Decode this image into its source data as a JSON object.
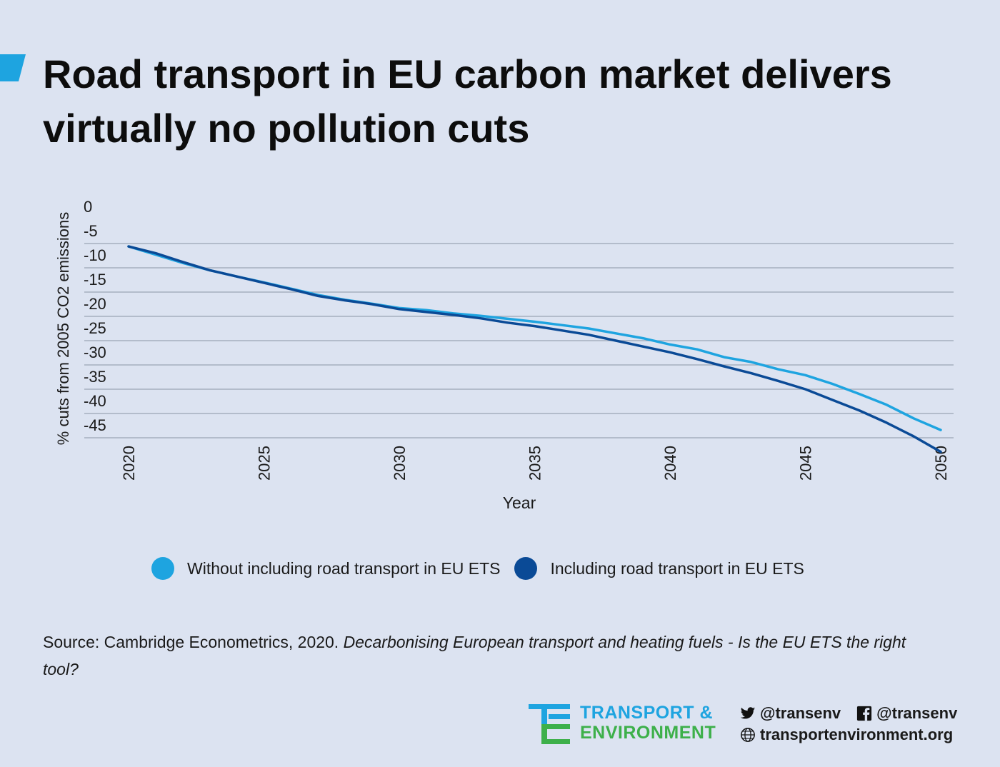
{
  "header": {
    "title": "Road transport in EU carbon market delivers virtually no pollution cuts"
  },
  "colors": {
    "background": "#dce3f1",
    "series_light": "#1ea4e0",
    "series_dark": "#0a4a96",
    "grid": "#9aa4b5",
    "te_blue": "#1ea4e0",
    "te_green": "#3db04a"
  },
  "chart_data": {
    "type": "line",
    "title": "",
    "xlabel": "Year",
    "ylabel": "% cuts from 2005 CO2 emissions",
    "xlim": [
      2020,
      2050
    ],
    "ylim": [
      -45,
      0
    ],
    "x_ticks": [
      "2020",
      "2025",
      "2030",
      "2035",
      "2040",
      "2045",
      "2050"
    ],
    "y_ticks": [
      "0",
      "-5",
      "-10",
      "-15",
      "-20",
      "-25",
      "-30",
      "-35",
      "-40",
      "-45"
    ],
    "grid": true,
    "legend_position": "bottom",
    "x": [
      2020,
      2021,
      2022,
      2023,
      2024,
      2025,
      2026,
      2027,
      2028,
      2029,
      2030,
      2031,
      2032,
      2033,
      2034,
      2035,
      2036,
      2037,
      2038,
      2039,
      2040,
      2041,
      2042,
      2043,
      2044,
      2045,
      2046,
      2047,
      2048,
      2049,
      2050
    ],
    "series": [
      {
        "name": "Without including road transport in EU ETS",
        "color": "#1ea4e0",
        "values": [
          -5.6,
          -7.3,
          -9.0,
          -10.5,
          -11.8,
          -13.0,
          -14.3,
          -15.6,
          -16.6,
          -17.4,
          -18.3,
          -18.7,
          -19.4,
          -19.9,
          -20.5,
          -21.1,
          -21.8,
          -22.5,
          -23.5,
          -24.5,
          -25.8,
          -26.8,
          -28.4,
          -29.4,
          -30.9,
          -32.1,
          -33.9,
          -36.0,
          -38.2,
          -41.0,
          -43.4
        ],
        "width": 3.5
      },
      {
        "name": "Including road transport in EU ETS",
        "color": "#0a4a96",
        "values": [
          -5.6,
          -7.0,
          -8.8,
          -10.5,
          -11.8,
          -13.1,
          -14.4,
          -15.8,
          -16.7,
          -17.5,
          -18.5,
          -19.1,
          -19.7,
          -20.4,
          -21.3,
          -22.0,
          -22.9,
          -23.8,
          -25.0,
          -26.2,
          -27.4,
          -28.8,
          -30.3,
          -31.7,
          -33.3,
          -35.0,
          -37.2,
          -39.4,
          -41.9,
          -44.7,
          -47.9
        ],
        "width": 3.5
      }
    ]
  },
  "legend": [
    {
      "label": "Without including road transport in EU ETS",
      "color": "#1ea4e0"
    },
    {
      "label": "Including road transport in EU ETS",
      "color": "#0a4a96"
    }
  ],
  "source": {
    "prefix": "Source: Cambridge Econometrics, 2020. ",
    "title_italic": "Decarbonising European transport and heating fuels - Is the EU ETS the right tool?"
  },
  "footer": {
    "logo_line1": "TRANSPORT &",
    "logo_line2": "ENVIRONMENT",
    "twitter_handle": "@transenv",
    "facebook_handle": "@transenv",
    "website": "transportenvironment.org",
    "icons": [
      "te-logo-icon",
      "twitter-icon",
      "facebook-icon",
      "globe-icon"
    ]
  }
}
